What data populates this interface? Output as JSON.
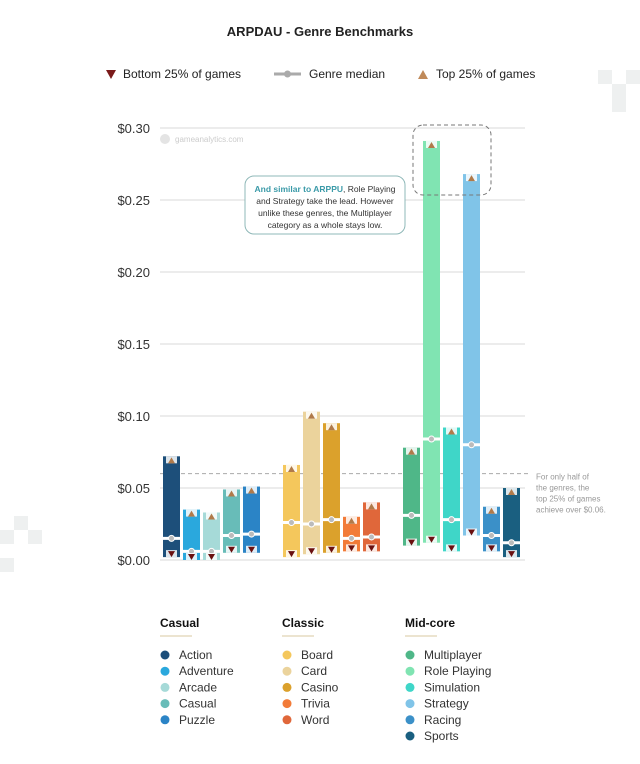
{
  "chart_data": {
    "type": "bar",
    "subtype": "range-bar (bottom 25% to top 25%, with median)",
    "title": "ARPDAU - Genre Benchmarks",
    "watermark": "gameanalytics.com",
    "ylim": [
      0,
      0.3
    ],
    "yticks": [
      "$0.00",
      "$0.05",
      "$0.10",
      "$0.15",
      "$0.20",
      "$0.25",
      "$0.30"
    ],
    "ytick_values": [
      0,
      0.05,
      0.1,
      0.15,
      0.2,
      0.25,
      0.3
    ],
    "grid": true,
    "legend": {
      "placement": "top",
      "bottom": "Bottom 25% of games",
      "median": "Genre median",
      "top": "Top 25% of games",
      "bottom_color": "#7a1a1a",
      "top_color": "#c08a5a",
      "median_color": "#9a9a9a"
    },
    "groups": [
      {
        "name": "Casual",
        "genres": [
          {
            "name": "Action",
            "color": "#1d4f7a",
            "bottom": 0.002,
            "median": 0.015,
            "top": 0.072
          },
          {
            "name": "Adventure",
            "color": "#2aa8dd",
            "bottom": 0.0,
            "median": 0.006,
            "top": 0.035
          },
          {
            "name": "Arcade",
            "color": "#a6dad8",
            "bottom": 0.0,
            "median": 0.006,
            "top": 0.033
          },
          {
            "name": "Casual",
            "color": "#68bcb8",
            "bottom": 0.005,
            "median": 0.017,
            "top": 0.049
          },
          {
            "name": "Puzzle",
            "color": "#2b84c6",
            "bottom": 0.005,
            "median": 0.018,
            "top": 0.051
          }
        ]
      },
      {
        "name": "Classic",
        "genres": [
          {
            "name": "Board",
            "color": "#f4c75c",
            "bottom": 0.002,
            "median": 0.026,
            "top": 0.066
          },
          {
            "name": "Card",
            "color": "#ebd39c",
            "bottom": 0.004,
            "median": 0.025,
            "top": 0.103
          },
          {
            "name": "Casino",
            "color": "#dba12c",
            "bottom": 0.005,
            "median": 0.028,
            "top": 0.095
          },
          {
            "name": "Trivia",
            "color": "#f27b38",
            "bottom": 0.006,
            "median": 0.015,
            "top": 0.03
          },
          {
            "name": "Word",
            "color": "#e0673a",
            "bottom": 0.006,
            "median": 0.016,
            "top": 0.04
          }
        ]
      },
      {
        "name": "Mid-core",
        "genres": [
          {
            "name": "Multiplayer",
            "color": "#4fb788",
            "bottom": 0.01,
            "median": 0.031,
            "top": 0.078
          },
          {
            "name": "Role Playing",
            "color": "#80e4b2",
            "bottom": 0.012,
            "median": 0.084,
            "top": 0.291
          },
          {
            "name": "Simulation",
            "color": "#3fd6c8",
            "bottom": 0.006,
            "median": 0.028,
            "top": 0.092
          },
          {
            "name": "Strategy",
            "color": "#80c4e8",
            "bottom": 0.017,
            "median": 0.08,
            "top": 0.268
          },
          {
            "name": "Racing",
            "color": "#3b90c8",
            "bottom": 0.006,
            "median": 0.017,
            "top": 0.037
          },
          {
            "name": "Sports",
            "color": "#1a5f80",
            "bottom": 0.002,
            "median": 0.012,
            "top": 0.05
          }
        ]
      }
    ],
    "reference_line": {
      "value": 0.06,
      "note": [
        "For only half of",
        "the genres, the",
        "top 25% of games",
        "achieve over $0.06."
      ]
    },
    "annotation": {
      "highlight": "And similar to ARPPU",
      "lines": [
        ", Role Playing",
        "and Strategy take the lead. However",
        "unlike these genres, the Multiplayer",
        "category as a whole stays low."
      ]
    }
  }
}
